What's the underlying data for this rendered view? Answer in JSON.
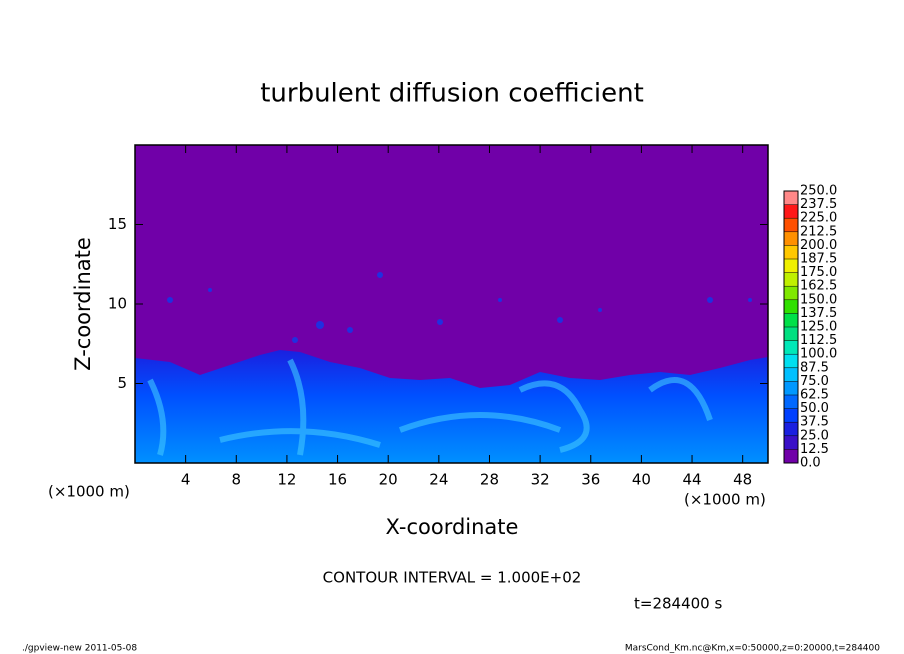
{
  "chart_data": {
    "type": "contour",
    "title": "turbulent diffusion coefficient",
    "xlabel": "X-coordinate",
    "ylabel": "Z-coordinate",
    "x_unit": "(×1000 m)",
    "xlim": [
      0,
      50
    ],
    "xticks": [
      4,
      8,
      12,
      16,
      20,
      24,
      28,
      32,
      36,
      40,
      44,
      48
    ],
    "ylim": [
      0,
      20
    ],
    "yticks": [
      5,
      10,
      15
    ],
    "colorbar": {
      "levels": [
        {
          "value": 0,
          "label": "0.0"
        },
        {
          "value": 12.5,
          "label": "12.5"
        },
        {
          "value": 25,
          "label": "25.0"
        },
        {
          "value": 37.5,
          "label": "37.5"
        },
        {
          "value": 50,
          "label": "50.0"
        },
        {
          "value": 62.5,
          "label": "62.5"
        },
        {
          "value": 75,
          "label": "75.0"
        },
        {
          "value": 87.5,
          "label": "87.5"
        },
        {
          "value": 100,
          "label": "100.0"
        },
        {
          "value": 112.5,
          "label": "112.5"
        },
        {
          "value": 125,
          "label": "125.0"
        },
        {
          "value": 137.5,
          "label": "137.5"
        },
        {
          "value": 150,
          "label": "150.0"
        },
        {
          "value": 162.5,
          "label": "162.5"
        },
        {
          "value": 175,
          "label": "175.0"
        },
        {
          "value": 187.5,
          "label": "187.5"
        },
        {
          "value": 200,
          "label": "200.0"
        },
        {
          "value": 212.5,
          "label": "212.5"
        },
        {
          "value": 225,
          "label": "225.0"
        },
        {
          "value": 237.5,
          "label": "237.5"
        },
        {
          "value": 250,
          "label": "250.0"
        }
      ],
      "colors": [
        "#7000a8",
        "#3a10c8",
        "#1a20e0",
        "#0040ff",
        "#0068ff",
        "#0098ff",
        "#00c0ff",
        "#00e0f0",
        "#00e8b8",
        "#00e080",
        "#00e048",
        "#30e000",
        "#80e800",
        "#c0f000",
        "#f0f000",
        "#ffc800",
        "#ff9000",
        "#ff5000",
        "#ff1818",
        "#ff8888"
      ]
    },
    "contour_interval": "CONTOUR INTERVAL = 1.000E+02",
    "time": "t=284400 s",
    "footer_left": "./gpview-new  2011-05-08",
    "footer_right": "MarsCond_Km.nc@Km,x=0:50000,z=0:20000,t=284400"
  }
}
